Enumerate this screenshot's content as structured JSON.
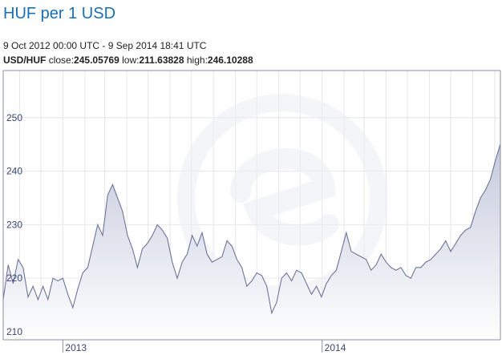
{
  "header": {
    "title": "HUF per 1 USD",
    "date_range": "9 Oct 2012 00:00 UTC - 9 Sep 2014 18:41 UTC",
    "pair_label": "USD/HUF",
    "close_label": "close:",
    "close_value": "245.05769",
    "low_label": "low:",
    "low_value": "211.63828",
    "high_label": "high:",
    "high_value": "246.10288"
  },
  "colors": {
    "line": "#6d7599",
    "fill_top": "#c5c9dc",
    "fill_bottom": "#ffffff",
    "grid": "#e6e6ea",
    "axis": "#8a8fa6",
    "label": "#39457a"
  },
  "chart_data": {
    "type": "area",
    "title": "HUF per 1 USD",
    "xlabel": "",
    "ylabel": "",
    "x_range": [
      "2012-10-09",
      "2014-09-09"
    ],
    "ylim": [
      208.5,
      258.8
    ],
    "yticks": [
      210,
      220,
      230,
      240,
      250
    ],
    "xticks": [
      {
        "label": "2013",
        "date": "2013-01-01"
      },
      {
        "label": "2014",
        "date": "2014-01-01"
      }
    ],
    "grid": true,
    "series": [
      {
        "values": [
          [
            "2012-10-09",
            216.0
          ],
          [
            "2012-10-16",
            222.5
          ],
          [
            "2012-10-23",
            219.0
          ],
          [
            "2012-10-30",
            223.5
          ],
          [
            "2012-11-06",
            222.0
          ],
          [
            "2012-11-13",
            216.5
          ],
          [
            "2012-11-20",
            218.5
          ],
          [
            "2012-11-27",
            216.0
          ],
          [
            "2012-12-04",
            218.5
          ],
          [
            "2012-12-11",
            216.0
          ],
          [
            "2012-12-18",
            220.0
          ],
          [
            "2012-12-25",
            219.5
          ],
          [
            "2013-01-01",
            220.0
          ],
          [
            "2013-01-08",
            217.0
          ],
          [
            "2013-01-15",
            214.5
          ],
          [
            "2013-01-22",
            218.0
          ],
          [
            "2013-01-29",
            221.0
          ],
          [
            "2013-02-05",
            222.0
          ],
          [
            "2013-02-12",
            226.0
          ],
          [
            "2013-02-19",
            230.0
          ],
          [
            "2013-02-26",
            228.0
          ],
          [
            "2013-03-05",
            235.5
          ],
          [
            "2013-03-12",
            237.5
          ],
          [
            "2013-03-19",
            235.0
          ],
          [
            "2013-03-26",
            232.5
          ],
          [
            "2013-04-02",
            228.0
          ],
          [
            "2013-04-09",
            225.5
          ],
          [
            "2013-04-16",
            222.0
          ],
          [
            "2013-04-23",
            225.5
          ],
          [
            "2013-04-30",
            226.5
          ],
          [
            "2013-05-07",
            228.0
          ],
          [
            "2013-05-14",
            230.0
          ],
          [
            "2013-05-21",
            229.0
          ],
          [
            "2013-05-28",
            227.5
          ],
          [
            "2013-06-04",
            223.0
          ],
          [
            "2013-06-11",
            220.0
          ],
          [
            "2013-06-18",
            223.0
          ],
          [
            "2013-06-25",
            224.5
          ],
          [
            "2013-07-02",
            228.0
          ],
          [
            "2013-07-09",
            226.0
          ],
          [
            "2013-07-16",
            228.5
          ],
          [
            "2013-07-23",
            224.5
          ],
          [
            "2013-07-30",
            223.0
          ],
          [
            "2013-08-06",
            223.5
          ],
          [
            "2013-08-13",
            224.0
          ],
          [
            "2013-08-20",
            227.0
          ],
          [
            "2013-08-27",
            226.0
          ],
          [
            "2013-09-03",
            223.5
          ],
          [
            "2013-09-10",
            222.0
          ],
          [
            "2013-09-17",
            218.5
          ],
          [
            "2013-09-24",
            219.5
          ],
          [
            "2013-10-01",
            221.0
          ],
          [
            "2013-10-08",
            220.5
          ],
          [
            "2013-10-15",
            218.5
          ],
          [
            "2013-10-22",
            213.5
          ],
          [
            "2013-10-29",
            215.5
          ],
          [
            "2013-11-05",
            220.0
          ],
          [
            "2013-11-12",
            221.0
          ],
          [
            "2013-11-19",
            219.5
          ],
          [
            "2013-11-26",
            221.5
          ],
          [
            "2013-12-03",
            221.0
          ],
          [
            "2013-12-10",
            219.0
          ],
          [
            "2013-12-17",
            217.0
          ],
          [
            "2013-12-24",
            218.5
          ],
          [
            "2013-12-31",
            216.5
          ],
          [
            "2014-01-07",
            219.0
          ],
          [
            "2014-01-14",
            220.5
          ],
          [
            "2014-01-21",
            221.5
          ],
          [
            "2014-01-28",
            225.0
          ],
          [
            "2014-02-04",
            228.5
          ],
          [
            "2014-02-11",
            225.0
          ],
          [
            "2014-02-18",
            224.5
          ],
          [
            "2014-02-25",
            224.0
          ],
          [
            "2014-03-04",
            223.5
          ],
          [
            "2014-03-11",
            221.5
          ],
          [
            "2014-03-18",
            222.5
          ],
          [
            "2014-03-25",
            224.5
          ],
          [
            "2014-04-01",
            223.0
          ],
          [
            "2014-04-08",
            222.0
          ],
          [
            "2014-04-15",
            221.5
          ],
          [
            "2014-04-22",
            222.0
          ],
          [
            "2014-04-29",
            220.5
          ],
          [
            "2014-05-06",
            220.0
          ],
          [
            "2014-05-13",
            222.0
          ],
          [
            "2014-05-20",
            222.0
          ],
          [
            "2014-05-27",
            223.0
          ],
          [
            "2014-06-03",
            223.5
          ],
          [
            "2014-06-10",
            224.5
          ],
          [
            "2014-06-17",
            225.5
          ],
          [
            "2014-06-24",
            227.0
          ],
          [
            "2014-07-01",
            225.0
          ],
          [
            "2014-07-08",
            226.5
          ],
          [
            "2014-07-15",
            228.0
          ],
          [
            "2014-07-22",
            229.0
          ],
          [
            "2014-07-29",
            229.5
          ],
          [
            "2014-08-05",
            232.5
          ],
          [
            "2014-08-12",
            235.0
          ],
          [
            "2014-08-19",
            236.5
          ],
          [
            "2014-08-26",
            238.5
          ],
          [
            "2014-09-02",
            242.0
          ],
          [
            "2014-09-09",
            245.05769
          ]
        ]
      }
    ]
  }
}
